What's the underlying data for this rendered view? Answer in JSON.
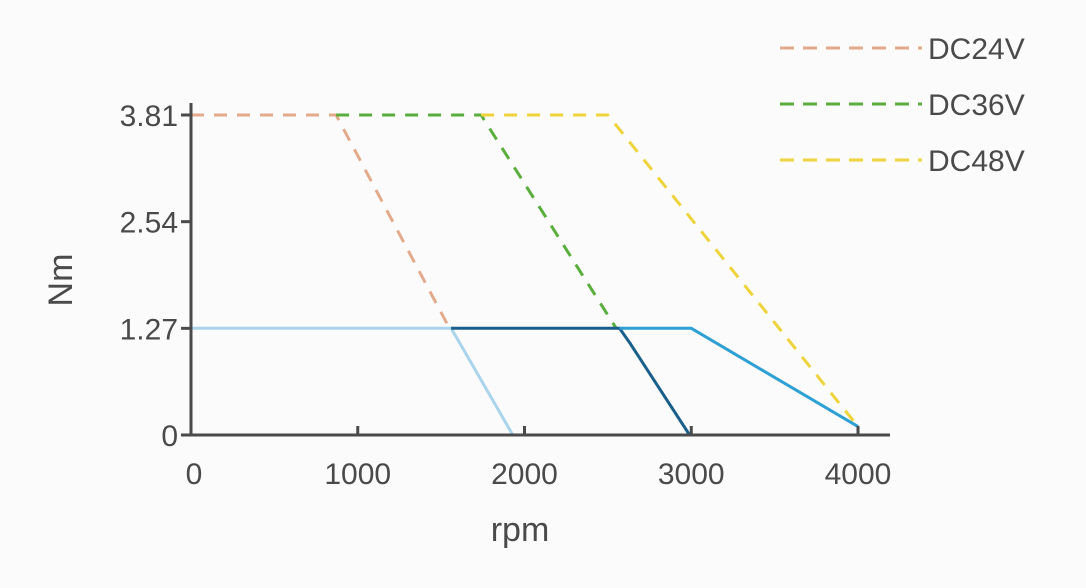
{
  "chart_data": {
    "type": "line",
    "xlabel": "rpm",
    "ylabel": "Nm",
    "xlim": [
      0,
      4000
    ],
    "ylim": [
      0,
      3.81
    ],
    "x_ticks": [
      0,
      1000,
      2000,
      3000,
      4000
    ],
    "x_tick_labels": [
      "0",
      "1000",
      "2000",
      "3000",
      "4000"
    ],
    "y_ticks": [
      0,
      1.27,
      2.54,
      3.81
    ],
    "y_tick_labels": [
      "0",
      "1.27",
      "2.54",
      "3.81"
    ],
    "grid": false,
    "legend_position": "top-right",
    "legend": [
      {
        "label": "DC24V",
        "color": "#e3aa8b",
        "style": "dashed"
      },
      {
        "label": "DC36V",
        "color": "#5aae3d",
        "style": "dashed"
      },
      {
        "label": "DC48V",
        "color": "#eed33a",
        "style": "dashed"
      }
    ],
    "series": [
      {
        "name": "DC24V",
        "style": "dashed",
        "color": "#e3aa8b",
        "x": [
          0,
          870,
          1550
        ],
        "y": [
          3.81,
          3.81,
          1.27
        ]
      },
      {
        "name": "DC36V",
        "style": "dashed",
        "color": "#5aae3d",
        "x": [
          870,
          1740,
          2550
        ],
        "y": [
          3.81,
          3.81,
          1.27
        ]
      },
      {
        "name": "DC48V",
        "style": "dashed",
        "color": "#eed33a",
        "x": [
          1740,
          2500,
          4000
        ],
        "y": [
          3.81,
          3.81,
          0.1
        ]
      },
      {
        "style": "solid",
        "color": "#a9d4ec",
        "x": [
          0,
          1560,
          1610,
          1930
        ],
        "y": [
          1.27,
          1.27,
          1.1,
          0
        ]
      },
      {
        "style": "solid",
        "color": "#1a5f8c",
        "x": [
          1560,
          2570,
          2630,
          2990
        ],
        "y": [
          1.27,
          1.27,
          1.1,
          0
        ]
      },
      {
        "style": "solid",
        "color": "#2ea0d4",
        "x": [
          2570,
          3000,
          4000
        ],
        "y": [
          1.27,
          1.27,
          0.1
        ]
      }
    ]
  }
}
